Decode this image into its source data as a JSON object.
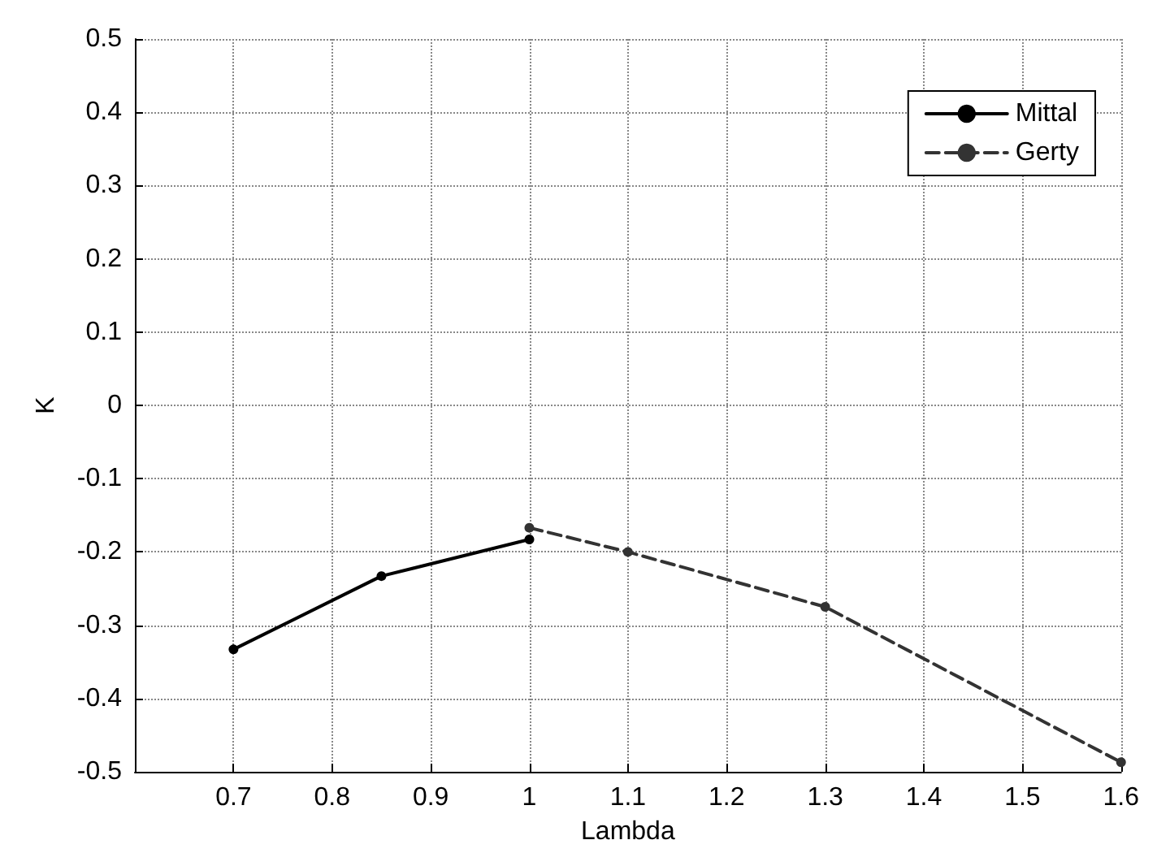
{
  "chart_data": {
    "type": "line",
    "xlabel": "Lambda",
    "ylabel": "K",
    "xlim": [
      0.6,
      1.6
    ],
    "xticks": [
      0.7,
      0.8,
      0.9,
      1,
      1.1,
      1.2,
      1.3,
      1.4,
      1.5,
      1.6
    ],
    "ylim": [
      -0.5,
      0.5
    ],
    "yticks": [
      -0.5,
      -0.4,
      -0.3,
      -0.2,
      -0.1,
      0,
      0.1,
      0.2,
      0.3,
      0.4,
      0.5
    ],
    "grid": true,
    "legend": "top right",
    "marker": "circle",
    "series": [
      {
        "name": "Mittal",
        "color": "#000000",
        "line_style": "solid",
        "x": [
          0.7,
          0.85,
          1
        ],
        "values": [
          -0.333,
          -0.233,
          -0.183
        ]
      },
      {
        "name": "Gerty",
        "color": "#333333",
        "line_style": "dashed",
        "x": [
          1,
          1.1,
          1.3,
          1.6
        ],
        "values": [
          -0.167,
          -0.2,
          -0.275,
          -0.487
        ]
      }
    ]
  }
}
